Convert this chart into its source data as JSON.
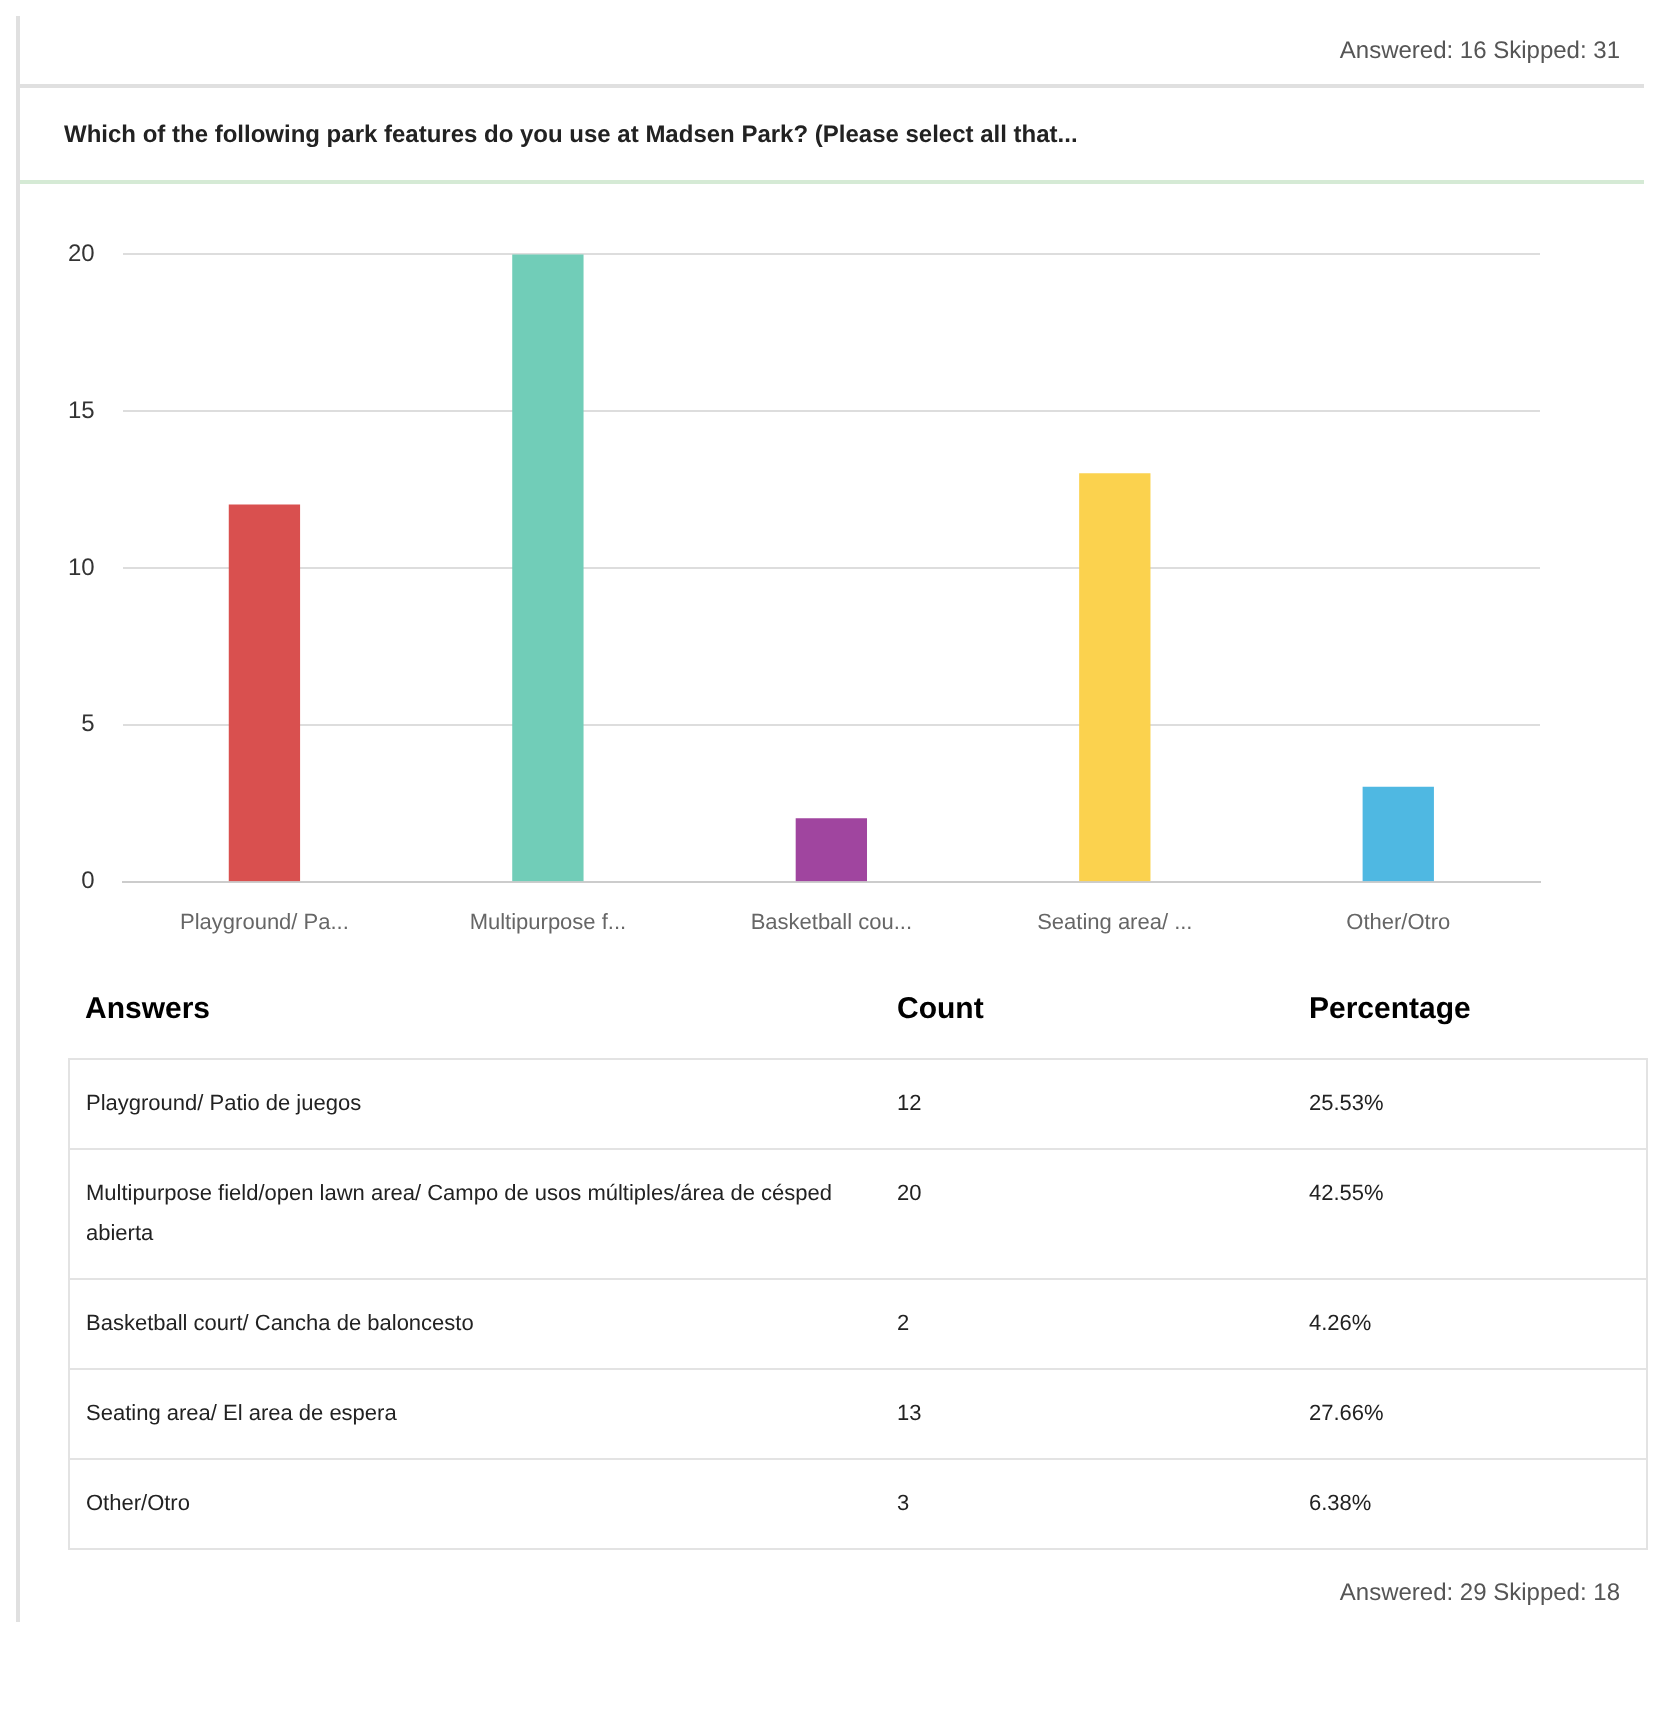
{
  "chart_data": {
    "type": "bar",
    "title": "Which of the following park features do you use at Madsen Park? (Please select all that...",
    "categories": [
      "Playground/ Pa...",
      "Multipurpose f...",
      "Basketball cou...",
      "Seating area/ ...",
      "Other/Otro"
    ],
    "values": [
      12,
      20,
      2,
      13,
      3
    ],
    "colors": [
      "#d9504f",
      "#71cdb8",
      "#a0459f",
      "#fbd24e",
      "#4fb8e2"
    ],
    "ylim": [
      0,
      20
    ],
    "yticks": [
      0,
      5,
      10,
      15,
      20
    ],
    "grid": "y",
    "legend": false,
    "annotations": [
      "Answered: 16  Skipped: 31",
      "Answers",
      "Count",
      "Percentage",
      "Playground/ Patio de juegos",
      "12",
      "25.53%",
      "Multipurpose field/open lawn area/ Campo de usos múltiples/área de césped abierta",
      "20",
      "42.55%",
      "Basketball court/ Cancha de baloncesto",
      "2",
      "4.26%",
      "Seating area/ El area de espera",
      "13",
      "27.66%",
      "Other/Otro",
      "3",
      "6.38%",
      "Answered: 29  Skipped: 18"
    ]
  }
}
